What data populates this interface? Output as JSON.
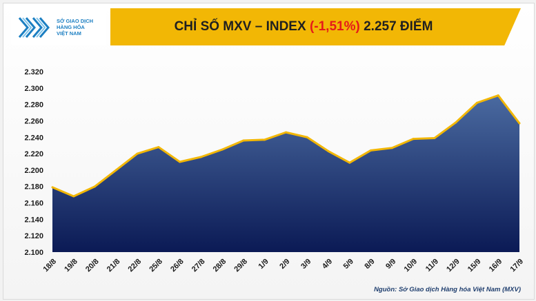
{
  "header": {
    "logo_lines": [
      "SỞ GIAO DỊCH",
      "HÀNG HÓA",
      "VIỆT NAM"
    ],
    "title_prefix": "CHỈ SỐ MXV – INDEX",
    "title_change": "(-1,51%)",
    "title_suffix": "2.257 ĐIỂM"
  },
  "source": "Nguồn: Sở Giao dịch Hàng hóa Việt Nam (MXV)",
  "colors": {
    "banner": "#f2b705",
    "negative": "#e51a1a",
    "line": "#f2b705",
    "area_top": "#4a6aa0",
    "area_bottom": "#0b1a55",
    "logo_blue": "#1c7fc2"
  },
  "chart_data": {
    "type": "area",
    "title": "CHỈ SỐ MXV – INDEX (-1,51%) 2.257 ĐIỂM",
    "xlabel": "",
    "ylabel": "",
    "ylim": [
      2100,
      2320
    ],
    "yticks": [
      "2.100",
      "2.120",
      "2.140",
      "2.160",
      "2.180",
      "2.200",
      "2.220",
      "2.240",
      "2.260",
      "2.280",
      "2.300",
      "2.320"
    ],
    "grid": false,
    "categories": [
      "18/8",
      "19/8",
      "20/8",
      "21/8",
      "22/8",
      "25/8",
      "26/8",
      "27/8",
      "28/8",
      "29/8",
      "1/9",
      "2/9",
      "3/9",
      "4/9",
      "5/9",
      "8/9",
      "9/9",
      "10/9",
      "11/9",
      "12/9",
      "15/9",
      "16/9",
      "17/9"
    ],
    "series": [
      {
        "values": [
          2179,
          2168,
          2180,
          2200,
          2220,
          2228,
          2210,
          2216,
          2225,
          2236,
          2237,
          2246,
          2240,
          2223,
          2209,
          2224,
          2227,
          2238,
          2239,
          2258,
          2282,
          2291,
          2257
        ]
      }
    ]
  }
}
